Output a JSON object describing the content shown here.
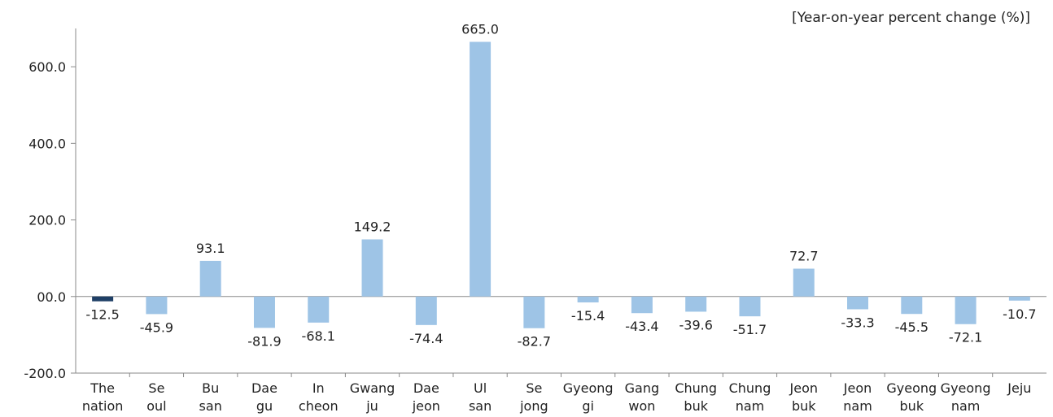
{
  "chart_data": {
    "type": "bar",
    "title": "",
    "unit_note": "[Year-on-year percent change (%)]",
    "ylim": [
      -200,
      700
    ],
    "yticks": [
      {
        "value": -200,
        "label": "-200.0"
      },
      {
        "value": 0,
        "label": "00.0"
      },
      {
        "value": 200,
        "label": "200.0"
      },
      {
        "value": 400,
        "label": "400.0"
      },
      {
        "value": 600,
        "label": "600.0"
      }
    ],
    "categories": [
      [
        "The",
        "nation"
      ],
      [
        "Se",
        "oul"
      ],
      [
        "Bu",
        "san"
      ],
      [
        "Dae",
        "gu"
      ],
      [
        "In",
        "cheon"
      ],
      [
        "Gwang",
        "ju"
      ],
      [
        "Dae",
        "jeon"
      ],
      [
        "Ul",
        "san"
      ],
      [
        "Se",
        "jong"
      ],
      [
        "Gyeong",
        "gi"
      ],
      [
        "Gang",
        "won"
      ],
      [
        "Chung",
        "buk"
      ],
      [
        "Chung",
        "nam"
      ],
      [
        "Jeon",
        "buk"
      ],
      [
        "Jeon",
        "nam"
      ],
      [
        "Gyeong",
        "buk"
      ],
      [
        "Gyeong",
        "nam"
      ],
      [
        "Jeju",
        ""
      ]
    ],
    "values": [
      -12.5,
      -45.9,
      93.1,
      -81.9,
      -68.1,
      149.2,
      -74.4,
      665.0,
      -82.7,
      -15.4,
      -43.4,
      -39.6,
      -51.7,
      72.7,
      -33.3,
      -45.5,
      -72.1,
      -10.7
    ],
    "value_labels": [
      "-12.5",
      "-45.9",
      "93.1",
      "-81.9",
      "-68.1",
      "149.2",
      "-74.4",
      "665.0",
      "-82.7",
      "-15.4",
      "-43.4",
      "-39.6",
      "-51.7",
      "72.7",
      "-33.3",
      "-45.5",
      "-72.1",
      "-10.7"
    ],
    "colors": {
      "highlight": "#1f3f66",
      "bar": "#9ec4e6",
      "axis": "#8a8a8a",
      "text": "#222222"
    },
    "highlight_index": 0,
    "grid": false,
    "legend": "none"
  }
}
